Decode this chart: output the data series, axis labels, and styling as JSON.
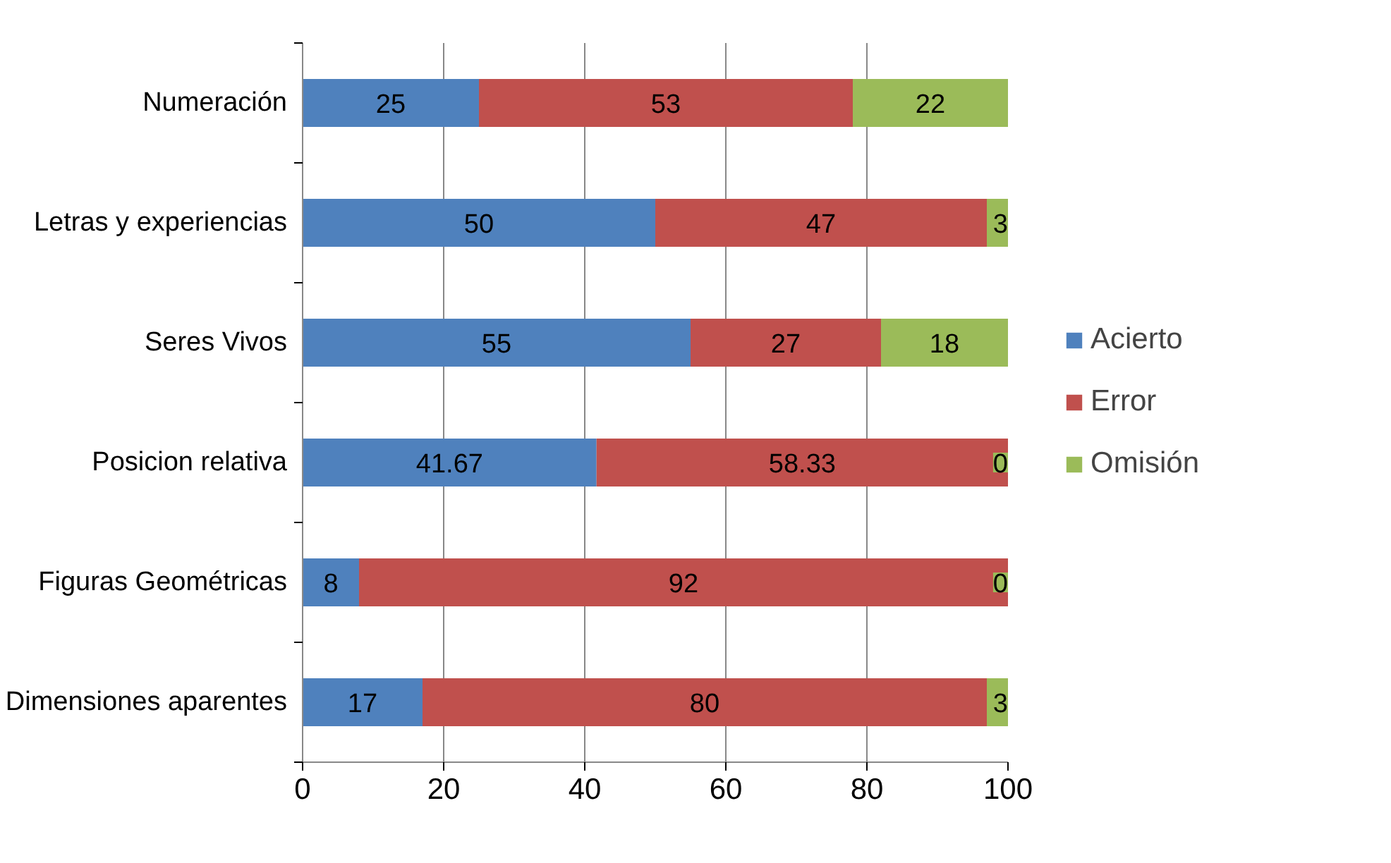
{
  "chart_data": {
    "type": "bar",
    "orientation": "horizontal",
    "stacked": true,
    "categories": [
      "Numeración",
      "Letras y experiencias",
      "Seres Vivos",
      "Posicion relativa",
      "Figuras Geométricas",
      "Dimensiones aparentes"
    ],
    "series": [
      {
        "name": "Acierto",
        "color": "#4f81bd",
        "values": [
          25,
          50,
          55,
          41.67,
          8,
          17
        ]
      },
      {
        "name": "Error",
        "color": "#c0504d",
        "values": [
          53,
          47,
          27,
          58.33,
          92,
          80
        ]
      },
      {
        "name": "Omisión",
        "color": "#9bbb59",
        "values": [
          22,
          3,
          18,
          0,
          0,
          3
        ]
      }
    ],
    "xlim": [
      0,
      100
    ],
    "xticks": [
      0,
      20,
      40,
      60,
      80,
      100
    ],
    "grid": "x",
    "legend": "right",
    "data_labels": true
  }
}
